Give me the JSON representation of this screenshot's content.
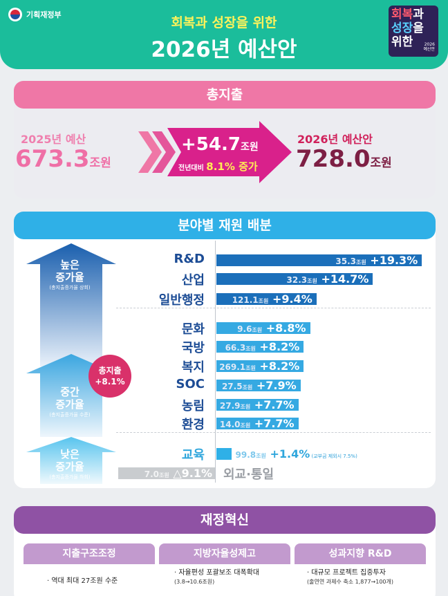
{
  "header": {
    "ministry": "기획재정부",
    "subtitle": "회복과 성장을 위한",
    "title": "2026년 예산안",
    "badge": {
      "line1a": "회복",
      "line1b": "과",
      "line2a": "성장",
      "line2b": "을",
      "line3": "위한",
      "small1": "2026",
      "small2": "예산안"
    }
  },
  "total": {
    "heading": "총지출",
    "prev_label": "2025년 예산",
    "prev_value": "673.3",
    "prev_unit": "조원",
    "delta_value": "+54.7",
    "delta_unit": "조원",
    "delta_prefix": "전년대비",
    "delta_rate": "8.1% 증가",
    "new_label": "2026년 예산안",
    "new_value": "728.0",
    "new_unit": "조원"
  },
  "distribution": {
    "heading": "분야별 재원 배분",
    "high": {
      "line1": "높은",
      "line2": "증가율",
      "note": "(총지출증가율 상회)"
    },
    "mid": {
      "line1": "중간",
      "line2": "증가율",
      "note": "(총지출증가율 수준)"
    },
    "low": {
      "line1": "낮은",
      "line2": "증가율",
      "note": "(총지출증가율 하회)"
    },
    "total_circle": {
      "line1": "총지출",
      "line2": "+8.1%"
    },
    "unit_label": "조원",
    "colors": {
      "high": "#1b6fba",
      "mid": "#35a9e2",
      "low": "#2fb0e7",
      "neg": "#c9cccf"
    }
  },
  "chart_data": {
    "type": "bar",
    "categories": [
      "R&D",
      "산업",
      "일반행정",
      "문화",
      "국방",
      "복지",
      "SOC",
      "농림",
      "환경",
      "교육",
      "외교·통일"
    ],
    "amounts": [
      "35.3",
      "32.3",
      "121.1",
      "9.6",
      "66.3",
      "269.1",
      "27.5",
      "27.9",
      "14.0",
      "99.8",
      "7.0"
    ],
    "rates": [
      "+19.3%",
      "+14.7%",
      "+9.4%",
      "+8.8%",
      "+8.2%",
      "+8.2%",
      "+7.9%",
      "+7.7%",
      "+7.7%",
      "+1.4%",
      "△9.1%"
    ],
    "values": [
      19.3,
      14.7,
      9.4,
      8.8,
      8.2,
      8.2,
      7.9,
      7.7,
      7.7,
      1.4,
      -9.1
    ],
    "education_note": "(교부금 제외시 7.5%)"
  },
  "reform": {
    "heading": "재정혁신",
    "items": [
      {
        "title": "지출구조조정",
        "desc": "· 역대 최대 27조원 수준",
        "sub": ""
      },
      {
        "title": "지방자율성제고",
        "desc": "· 자율편성 포괄보조 대폭확대",
        "sub": "(3.8→10.6조원)"
      },
      {
        "title": "성과지향 R&D",
        "desc": "· 대규모 프로젝트 집중투자",
        "sub": "(출연연 과제수 축소 1,877→100개)"
      }
    ]
  }
}
